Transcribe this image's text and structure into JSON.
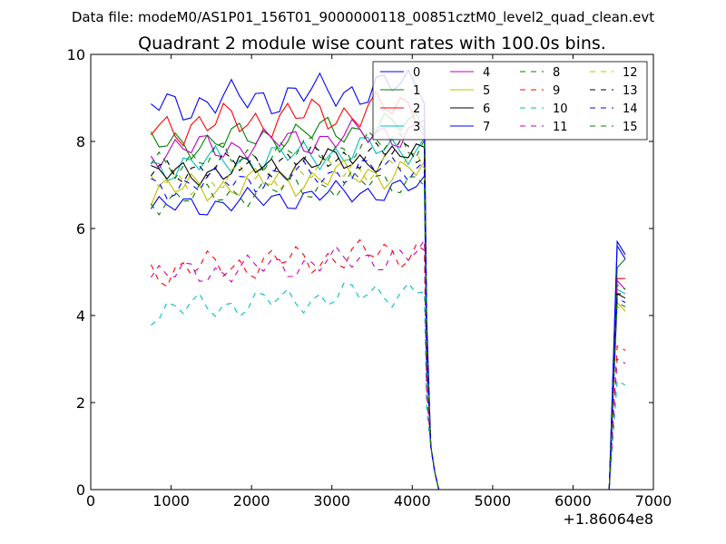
{
  "suptitle": "Data file: modeM0/AS1P01_156T01_9000000118_00851cztM0_level2_quad_clean.evt",
  "chart_data": {
    "type": "line",
    "title": "Quadrant 2 module wise count rates with 100.0s bins.",
    "xlabel": "",
    "ylabel": "",
    "x_offset_label": "+1.86064e8",
    "xlim": [
      0,
      7000
    ],
    "ylim": [
      0,
      10
    ],
    "xticks": [
      "0",
      "1000",
      "2000",
      "3000",
      "4000",
      "5000",
      "6000",
      "7000"
    ],
    "yticks": [
      "0",
      "2",
      "4",
      "6",
      "8",
      "10"
    ],
    "grid": false,
    "legend": {
      "placement": "top-right",
      "columns": 4
    },
    "gap": {
      "x_last_active": 4150,
      "x_zero_start": 4330,
      "x_zero_end": 6450,
      "x_resume": 6550,
      "x_end": 6650
    },
    "x_start": 750,
    "x_step": 100,
    "series": [
      {
        "name": "0",
        "color": "#0000ff",
        "dash": "solid",
        "base": 6.45,
        "amp": 0.2,
        "end": [
          5.6,
          5.3
        ]
      },
      {
        "name": "1",
        "color": "#008000",
        "dash": "solid",
        "base": 7.9,
        "amp": 0.25,
        "end": [
          5.1,
          5.3
        ]
      },
      {
        "name": "2",
        "color": "#ff0000",
        "dash": "solid",
        "base": 8.3,
        "amp": 0.3,
        "end": [
          4.85,
          4.85
        ]
      },
      {
        "name": "3",
        "color": "#00bfbf",
        "dash": "solid",
        "base": 7.4,
        "amp": 0.25,
        "end": [
          4.6,
          4.5
        ]
      },
      {
        "name": "4",
        "color": "#bf00bf",
        "dash": "solid",
        "base": 7.75,
        "amp": 0.25,
        "end": [
          4.8,
          4.6
        ]
      },
      {
        "name": "5",
        "color": "#bfbf00",
        "dash": "solid",
        "base": 6.85,
        "amp": 0.25,
        "end": [
          4.3,
          4.1
        ]
      },
      {
        "name": "6",
        "color": "#000000",
        "dash": "solid",
        "base": 7.2,
        "amp": 0.22,
        "end": [
          4.5,
          4.4
        ]
      },
      {
        "name": "7",
        "color": "#0000ff",
        "dash": "solid",
        "base": 8.8,
        "amp": 0.3,
        "end": [
          5.7,
          5.4
        ]
      },
      {
        "name": "8",
        "color": "#008000",
        "dash": "dashed",
        "base": 7.5,
        "amp": 0.25,
        "end": [
          4.7,
          4.6
        ]
      },
      {
        "name": "9",
        "color": "#ff0000",
        "dash": "dashed",
        "base": 5.0,
        "amp": 0.25,
        "end": [
          3.3,
          3.2
        ]
      },
      {
        "name": "10",
        "color": "#00bfbf",
        "dash": "dashed",
        "base": 4.1,
        "amp": 0.22,
        "end": [
          2.5,
          2.4
        ]
      },
      {
        "name": "11",
        "color": "#bf00bf",
        "dash": "dashed",
        "base": 4.9,
        "amp": 0.22,
        "end": [
          3.0,
          2.9
        ]
      },
      {
        "name": "12",
        "color": "#bfbf00",
        "dash": "dashed",
        "base": 7.0,
        "amp": 0.22,
        "end": [
          4.2,
          4.1
        ]
      },
      {
        "name": "13",
        "color": "#000000",
        "dash": "dashed",
        "base": 7.3,
        "amp": 0.22,
        "end": [
          4.5,
          4.5
        ]
      },
      {
        "name": "14",
        "color": "#0000ff",
        "dash": "dashed",
        "base": 6.95,
        "amp": 0.22,
        "end": [
          4.4,
          4.3
        ]
      },
      {
        "name": "15",
        "color": "#008000",
        "dash": "dashed",
        "base": 6.65,
        "amp": 0.22,
        "end": [
          4.3,
          4.2
        ]
      }
    ]
  }
}
